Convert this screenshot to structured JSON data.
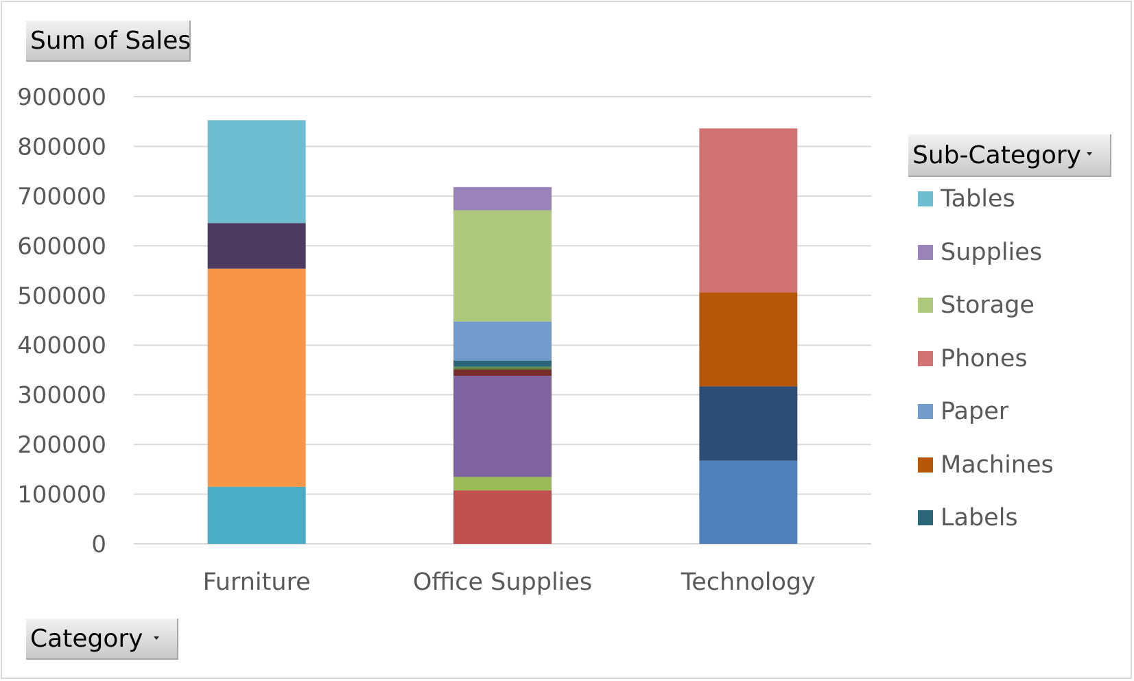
{
  "values_field_button": {
    "label": "Sum of Sales"
  },
  "axis_field_button": {
    "label": "Category"
  },
  "legend_field_button": {
    "label": "Sub-Category"
  },
  "legend_entries": [
    {
      "label": "Tables",
      "color": "#6fbdd1"
    },
    {
      "label": "Supplies",
      "color": "#9a83b8"
    },
    {
      "label": "Storage",
      "color": "#afc97c"
    },
    {
      "label": "Phones",
      "color": "#d07372"
    },
    {
      "label": "Paper",
      "color": "#739ccd"
    },
    {
      "label": "Machines",
      "color": "#b65608"
    },
    {
      "label": "Labels",
      "color": "#2a6677"
    }
  ],
  "chart_data": {
    "type": "bar",
    "stacked": true,
    "title": "",
    "xlabel": "",
    "ylabel": "",
    "ylim": [
      0,
      900000
    ],
    "yticks": [
      0,
      100000,
      200000,
      300000,
      400000,
      500000,
      600000,
      700000,
      800000,
      900000
    ],
    "grid": true,
    "legend_position": "right",
    "categories": [
      "Furniture",
      "Office Supplies",
      "Technology"
    ],
    "stacks": [
      {
        "category": "Furniture",
        "segments": [
          {
            "value": 114880,
            "color": "#4bacc6"
          },
          {
            "value": 439100,
            "color": "#f79646"
          },
          {
            "value": 91710,
            "color": "#4c3a60"
          },
          {
            "value": 206970,
            "color": "#6fbdd1"
          }
        ]
      },
      {
        "category": "Office Supplies",
        "segments": [
          {
            "value": 107530,
            "color": "#c0504d"
          },
          {
            "value": 27120,
            "color": "#9bbb59"
          },
          {
            "value": 203410,
            "color": "#8064a2"
          },
          {
            "value": 12490,
            "color": "#772c2a"
          },
          {
            "value": 3020,
            "color": "#5f7530"
          },
          {
            "value": 3020,
            "color": "#5b8a52"
          },
          {
            "value": 12490,
            "color": "#2a6677"
          },
          {
            "value": 78480,
            "color": "#739ccd"
          },
          {
            "value": 223840,
            "color": "#afc97c"
          },
          {
            "value": 46670,
            "color": "#9a83b8"
          }
        ]
      },
      {
        "category": "Technology",
        "segments": [
          {
            "value": 167380,
            "color": "#4f81bd"
          },
          {
            "value": 149530,
            "color": "#2c4d75"
          },
          {
            "value": 189240,
            "color": "#b65608"
          },
          {
            "value": 330010,
            "color": "#d07372"
          }
        ]
      }
    ]
  }
}
